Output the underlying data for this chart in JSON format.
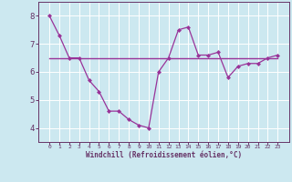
{
  "xlabel": "Windchill (Refroidissement éolien,°C)",
  "x_hours": [
    0,
    1,
    2,
    3,
    4,
    5,
    6,
    7,
    8,
    9,
    10,
    11,
    12,
    13,
    14,
    15,
    16,
    17,
    18,
    19,
    20,
    21,
    22,
    23
  ],
  "line1_y": [
    8.0,
    7.3,
    6.5,
    6.5,
    5.7,
    5.3,
    4.6,
    4.6,
    4.3,
    4.1,
    4.0,
    6.0,
    6.5,
    7.5,
    7.6,
    6.6,
    6.6,
    6.7,
    5.8,
    6.2,
    6.3,
    6.3,
    6.5,
    6.6
  ],
  "line2_y": [
    6.5,
    6.5,
    6.5,
    6.5,
    6.5,
    6.5,
    6.5,
    6.5,
    6.5,
    6.5,
    6.5,
    6.5,
    6.5,
    6.5,
    6.5,
    6.5,
    6.5,
    6.5,
    6.5,
    6.5,
    6.5,
    6.5,
    6.5,
    6.5
  ],
  "line_color": "#993399",
  "bg_color": "#cce8f0",
  "grid_color": "#ffffff",
  "axis_color": "#663366",
  "tick_color": "#663366",
  "ylim": [
    3.5,
    8.5
  ],
  "yticks": [
    4,
    5,
    6,
    7,
    8
  ],
  "xticks": [
    0,
    1,
    2,
    3,
    4,
    5,
    6,
    7,
    8,
    9,
    10,
    11,
    12,
    13,
    14,
    15,
    16,
    17,
    18,
    19,
    20,
    21,
    22,
    23
  ],
  "xtick_labels": [
    "0",
    "1",
    "2",
    "3",
    "4",
    "5",
    "6",
    "7",
    "8",
    "9",
    "10",
    "11",
    "12",
    "13",
    "14",
    "15",
    "16",
    "17",
    "18",
    "19",
    "20",
    "21",
    "22",
    "23"
  ]
}
